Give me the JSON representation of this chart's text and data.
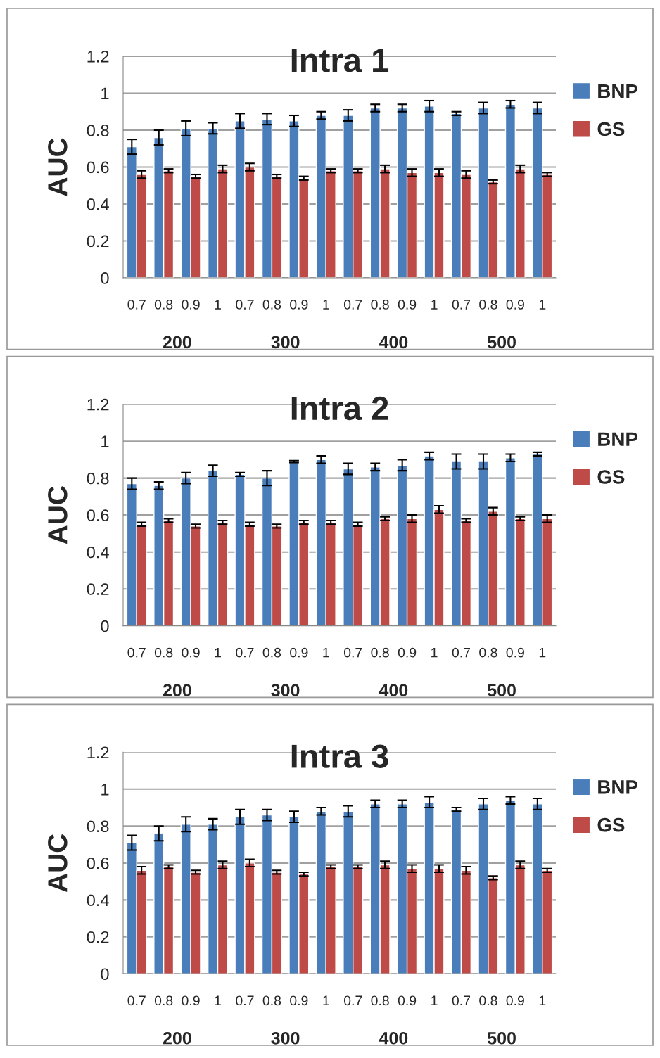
{
  "chart_data": [
    {
      "type": "bar",
      "title": "Intra 1",
      "ylabel": "AUC",
      "categories": [
        "0.7",
        "0.8",
        "0.9",
        "1",
        "0.7",
        "0.8",
        "0.9",
        "1",
        "0.7",
        "0.8",
        "0.9",
        "1",
        "0.7",
        "0.8",
        "0.9",
        "1"
      ],
      "annotations": [
        "200",
        "300",
        "400",
        "500"
      ],
      "ylim": [
        0,
        1.2
      ],
      "yticks": [
        0,
        0.2,
        0.4,
        0.6,
        0.8,
        1,
        1.2
      ],
      "grid": "y",
      "legend": "right",
      "series": [
        {
          "name": "BNP",
          "color": "#4a7ebb",
          "values": [
            0.71,
            0.76,
            0.81,
            0.81,
            0.85,
            0.86,
            0.85,
            0.88,
            0.88,
            0.92,
            0.92,
            0.93,
            0.89,
            0.92,
            0.94,
            0.92
          ],
          "errors": [
            0.04,
            0.04,
            0.04,
            0.03,
            0.04,
            0.03,
            0.03,
            0.02,
            0.03,
            0.02,
            0.02,
            0.03,
            0.01,
            0.03,
            0.02,
            0.03
          ]
        },
        {
          "name": "GS",
          "color": "#be4b48",
          "values": [
            0.56,
            0.58,
            0.55,
            0.59,
            0.6,
            0.55,
            0.54,
            0.58,
            0.58,
            0.59,
            0.57,
            0.57,
            0.56,
            0.52,
            0.59,
            0.56
          ],
          "errors": [
            0.02,
            0.01,
            0.01,
            0.02,
            0.02,
            0.01,
            0.01,
            0.01,
            0.01,
            0.02,
            0.02,
            0.02,
            0.02,
            0.01,
            0.02,
            0.01
          ]
        }
      ]
    },
    {
      "type": "bar",
      "title": "Intra 2",
      "ylabel": "AUC",
      "categories": [
        "0.7",
        "0.8",
        "0.9",
        "1",
        "0.7",
        "0.8",
        "0.9",
        "1",
        "0.7",
        "0.8",
        "0.9",
        "1",
        "0.7",
        "0.8",
        "0.9",
        "1"
      ],
      "annotations": [
        "200",
        "300",
        "400",
        "500"
      ],
      "ylim": [
        0,
        1.2
      ],
      "yticks": [
        0,
        0.2,
        0.4,
        0.6,
        0.8,
        1,
        1.2
      ],
      "grid": "y",
      "legend": "right",
      "series": [
        {
          "name": "BNP",
          "color": "#4a7ebb",
          "values": [
            0.77,
            0.76,
            0.8,
            0.84,
            0.82,
            0.8,
            0.89,
            0.9,
            0.85,
            0.86,
            0.87,
            0.92,
            0.89,
            0.89,
            0.91,
            0.93
          ],
          "errors": [
            0.03,
            0.02,
            0.03,
            0.03,
            0.01,
            0.04,
            0.005,
            0.02,
            0.03,
            0.02,
            0.03,
            0.02,
            0.04,
            0.04,
            0.02,
            0.01
          ]
        },
        {
          "name": "GS",
          "color": "#be4b48",
          "values": [
            0.55,
            0.57,
            0.54,
            0.56,
            0.55,
            0.54,
            0.56,
            0.56,
            0.55,
            0.58,
            0.58,
            0.63,
            0.57,
            0.62,
            0.58,
            0.58
          ],
          "errors": [
            0.01,
            0.01,
            0.01,
            0.01,
            0.01,
            0.01,
            0.01,
            0.01,
            0.01,
            0.01,
            0.02,
            0.02,
            0.01,
            0.02,
            0.01,
            0.02
          ]
        }
      ]
    },
    {
      "type": "bar",
      "title": "Intra 3",
      "ylabel": "AUC",
      "categories": [
        "0.7",
        "0.8",
        "0.9",
        "1",
        "0.7",
        "0.8",
        "0.9",
        "1",
        "0.7",
        "0.8",
        "0.9",
        "1",
        "0.7",
        "0.8",
        "0.9",
        "1"
      ],
      "annotations": [
        "200",
        "300",
        "400",
        "500"
      ],
      "ylim": [
        0,
        1.2
      ],
      "yticks": [
        0,
        0.2,
        0.4,
        0.6,
        0.8,
        1,
        1.2
      ],
      "grid": "y",
      "legend": "right",
      "series": [
        {
          "name": "BNP",
          "color": "#4a7ebb",
          "values": [
            0.71,
            0.76,
            0.81,
            0.81,
            0.85,
            0.86,
            0.85,
            0.88,
            0.88,
            0.92,
            0.92,
            0.93,
            0.89,
            0.92,
            0.94,
            0.92
          ],
          "errors": [
            0.04,
            0.04,
            0.04,
            0.03,
            0.04,
            0.03,
            0.03,
            0.02,
            0.03,
            0.02,
            0.02,
            0.03,
            0.01,
            0.03,
            0.02,
            0.03
          ]
        },
        {
          "name": "GS",
          "color": "#be4b48",
          "values": [
            0.56,
            0.58,
            0.55,
            0.59,
            0.6,
            0.55,
            0.54,
            0.58,
            0.58,
            0.59,
            0.57,
            0.57,
            0.56,
            0.52,
            0.59,
            0.56
          ],
          "errors": [
            0.02,
            0.01,
            0.01,
            0.02,
            0.02,
            0.01,
            0.01,
            0.01,
            0.01,
            0.02,
            0.02,
            0.02,
            0.02,
            0.01,
            0.02,
            0.01
          ]
        }
      ]
    }
  ]
}
